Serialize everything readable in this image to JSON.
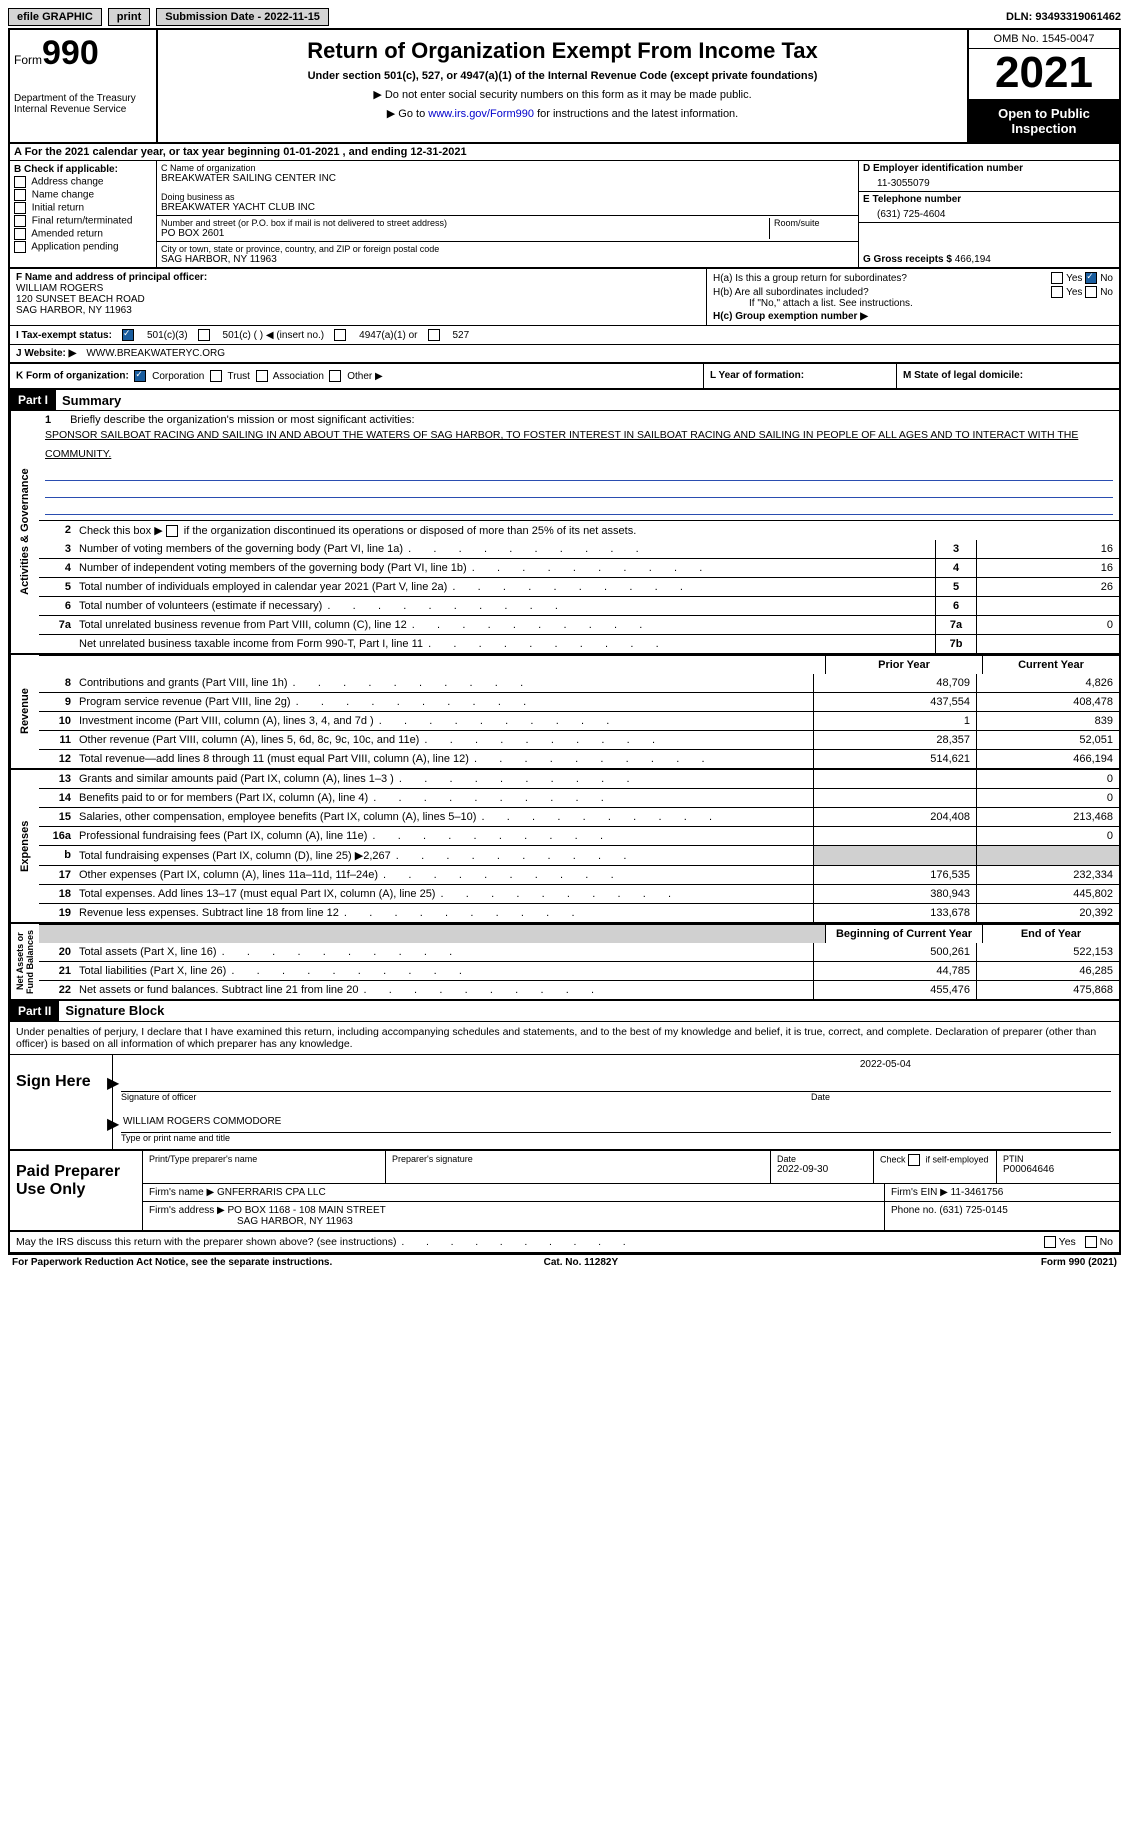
{
  "topbar": {
    "efile_label": "efile GRAPHIC",
    "print_label": "print",
    "submission_label": "Submission Date - 2022-11-15",
    "dln_label": "DLN: 93493319061462"
  },
  "header": {
    "form_word": "Form",
    "form_num": "990",
    "dept": "Department of the Treasury\nInternal Revenue Service",
    "title": "Return of Organization Exempt From Income Tax",
    "subtitle": "Under section 501(c), 527, or 4947(a)(1) of the Internal Revenue Code (except private foundations)",
    "instr1": "Do not enter social security numbers on this form as it may be made public.",
    "instr2_pre": "Go to ",
    "instr2_link": "www.irs.gov/Form990",
    "instr2_post": " for instructions and the latest information.",
    "omb": "OMB No. 1545-0047",
    "tax_year": "2021",
    "open_public": "Open to Public Inspection"
  },
  "row_a": "A For the 2021 calendar year, or tax year beginning 01-01-2021   , and ending 12-31-2021",
  "section_b": {
    "header": "B Check if applicable:",
    "opts": [
      "Address change",
      "Name change",
      "Initial return",
      "Final return/terminated",
      "Amended return",
      "Application pending"
    ]
  },
  "section_c": {
    "name_lbl": "C Name of organization",
    "name": "BREAKWATER SAILING CENTER INC",
    "dba_lbl": "Doing business as",
    "dba": "BREAKWATER YACHT CLUB INC",
    "addr_lbl1": "Number and street (or P.O. box if mail is not delivered to street address)",
    "addr_lbl2": "Room/suite",
    "addr": "PO BOX 2601",
    "city_lbl": "City or town, state or province, country, and ZIP or foreign postal code",
    "city": "SAG HARBOR, NY  11963"
  },
  "section_d": {
    "lbl": "D Employer identification number",
    "val": "11-3055079"
  },
  "section_e": {
    "lbl": "E Telephone number",
    "val": "(631) 725-4604"
  },
  "section_g": {
    "lbl": "G Gross receipts $",
    "val": "466,194"
  },
  "section_f": {
    "lbl": "F  Name and address of principal officer:",
    "name": "WILLIAM ROGERS",
    "addr1": "120 SUNSET BEACH ROAD",
    "addr2": "SAG HARBOR, NY  11963"
  },
  "section_h": {
    "a": "H(a)  Is this a group return for subordinates?",
    "b": "H(b)  Are all subordinates included?",
    "b_note": "If \"No,\" attach a list. See instructions.",
    "c": "H(c)  Group exemption number ▶",
    "yes": "Yes",
    "no": "No"
  },
  "row_i": {
    "lbl": "I    Tax-exempt status:",
    "opt1": "501(c)(3)",
    "opt2": "501(c) (  ) ◀ (insert no.)",
    "opt3": "4947(a)(1) or",
    "opt4": "527"
  },
  "row_j": {
    "lbl": "J    Website: ▶",
    "val": "WWW.BREAKWATERYC.ORG"
  },
  "row_k": {
    "lbl": "K Form of organization:",
    "opts": [
      "Corporation",
      "Trust",
      "Association",
      "Other ▶"
    ],
    "l_lbl": "L Year of formation:",
    "m_lbl": "M State of legal domicile:"
  },
  "part1": {
    "hdr": "Part I",
    "title": "Summary"
  },
  "vtabs": {
    "activities": "Activities & Governance",
    "revenue": "Revenue",
    "expenses": "Expenses",
    "netassets": "Net Assets or\nFund Balances"
  },
  "mission": {
    "lbl": "Briefly describe the organization's mission or most significant activities:",
    "text": "SPONSOR SAILBOAT RACING AND SAILING IN AND ABOUT THE WATERS OF SAG HARBOR, TO FOSTER INTEREST IN SAILBOAT RACING AND SAILING IN PEOPLE OF ALL AGES AND TO INTERACT WITH THE COMMUNITY."
  },
  "line2": "Check this box ▶        if the organization discontinued its operations or disposed of more than 25% of its net assets.",
  "lines_ag": [
    {
      "n": "3",
      "d": "Number of voting members of the governing body (Part VI, line 1a)",
      "box": "3",
      "v": "16"
    },
    {
      "n": "4",
      "d": "Number of independent voting members of the governing body (Part VI, line 1b)",
      "box": "4",
      "v": "16"
    },
    {
      "n": "5",
      "d": "Total number of individuals employed in calendar year 2021 (Part V, line 2a)",
      "box": "5",
      "v": "26"
    },
    {
      "n": "6",
      "d": "Total number of volunteers (estimate if necessary)",
      "box": "6",
      "v": ""
    },
    {
      "n": "7a",
      "d": "Total unrelated business revenue from Part VIII, column (C), line 12",
      "box": "7a",
      "v": "0"
    },
    {
      "n": "",
      "d": "Net unrelated business taxable income from Form 990-T, Part I, line 11",
      "box": "7b",
      "v": ""
    }
  ],
  "col_hdrs": {
    "prior": "Prior Year",
    "current": "Current Year",
    "boy": "Beginning of Current Year",
    "eoy": "End of Year"
  },
  "lines_rev": [
    {
      "n": "8",
      "d": "Contributions and grants (Part VIII, line 1h)",
      "p": "48,709",
      "c": "4,826"
    },
    {
      "n": "9",
      "d": "Program service revenue (Part VIII, line 2g)",
      "p": "437,554",
      "c": "408,478"
    },
    {
      "n": "10",
      "d": "Investment income (Part VIII, column (A), lines 3, 4, and 7d )",
      "p": "1",
      "c": "839"
    },
    {
      "n": "11",
      "d": "Other revenue (Part VIII, column (A), lines 5, 6d, 8c, 9c, 10c, and 11e)",
      "p": "28,357",
      "c": "52,051"
    },
    {
      "n": "12",
      "d": "Total revenue—add lines 8 through 11 (must equal Part VIII, column (A), line 12)",
      "p": "514,621",
      "c": "466,194"
    }
  ],
  "lines_exp": [
    {
      "n": "13",
      "d": "Grants and similar amounts paid (Part IX, column (A), lines 1–3 )",
      "p": "",
      "c": "0"
    },
    {
      "n": "14",
      "d": "Benefits paid to or for members (Part IX, column (A), line 4)",
      "p": "",
      "c": "0"
    },
    {
      "n": "15",
      "d": "Salaries, other compensation, employee benefits (Part IX, column (A), lines 5–10)",
      "p": "204,408",
      "c": "213,468"
    },
    {
      "n": "16a",
      "d": "Professional fundraising fees (Part IX, column (A), line 11e)",
      "p": "",
      "c": "0"
    },
    {
      "n": "b",
      "d": "Total fundraising expenses (Part IX, column (D), line 25) ▶2,267",
      "p": "",
      "c": "",
      "shaded": true
    },
    {
      "n": "17",
      "d": "Other expenses (Part IX, column (A), lines 11a–11d, 11f–24e)",
      "p": "176,535",
      "c": "232,334"
    },
    {
      "n": "18",
      "d": "Total expenses. Add lines 13–17 (must equal Part IX, column (A), line 25)",
      "p": "380,943",
      "c": "445,802"
    },
    {
      "n": "19",
      "d": "Revenue less expenses. Subtract line 18 from line 12",
      "p": "133,678",
      "c": "20,392"
    }
  ],
  "lines_na": [
    {
      "n": "20",
      "d": "Total assets (Part X, line 16)",
      "p": "500,261",
      "c": "522,153"
    },
    {
      "n": "21",
      "d": "Total liabilities (Part X, line 26)",
      "p": "44,785",
      "c": "46,285"
    },
    {
      "n": "22",
      "d": "Net assets or fund balances. Subtract line 21 from line 20",
      "p": "455,476",
      "c": "475,868"
    }
  ],
  "part2": {
    "hdr": "Part II",
    "title": "Signature Block"
  },
  "declare": "Under penalties of perjury, I declare that I have examined this return, including accompanying schedules and statements, and to the best of my knowledge and belief, it is true, correct, and complete. Declaration of preparer (other than officer) is based on all information of which preparer has any knowledge.",
  "sign": {
    "here": "Sign Here",
    "sig_lbl": "Signature of officer",
    "date_lbl": "Date",
    "date": "2022-05-04",
    "name": "WILLIAM ROGERS COMMODORE",
    "name_lbl": "Type or print name and title"
  },
  "prep": {
    "left": "Paid Preparer Use Only",
    "h_name": "Print/Type preparer's name",
    "h_sig": "Preparer's signature",
    "h_date": "Date",
    "date": "2022-09-30",
    "h_check": "Check         if self-employed",
    "h_ptin": "PTIN",
    "ptin": "P00064646",
    "firm_name_lbl": "Firm's name     ▶",
    "firm_name": "GNFERRARIS CPA LLC",
    "firm_ein_lbl": "Firm's EIN ▶",
    "firm_ein": "11-3461756",
    "firm_addr_lbl": "Firm's address ▶",
    "firm_addr1": "PO BOX 1168 - 108 MAIN STREET",
    "firm_addr2": "SAG HARBOR, NY  11963",
    "phone_lbl": "Phone no.",
    "phone": "(631) 725-0145"
  },
  "footer": {
    "q": "May the IRS discuss this return with the preparer shown above? (see instructions)",
    "yes": "Yes",
    "no": "No"
  },
  "bottom": {
    "l": "For Paperwork Reduction Act Notice, see the separate instructions.",
    "m": "Cat. No. 11282Y",
    "r": "Form 990 (2021)"
  }
}
